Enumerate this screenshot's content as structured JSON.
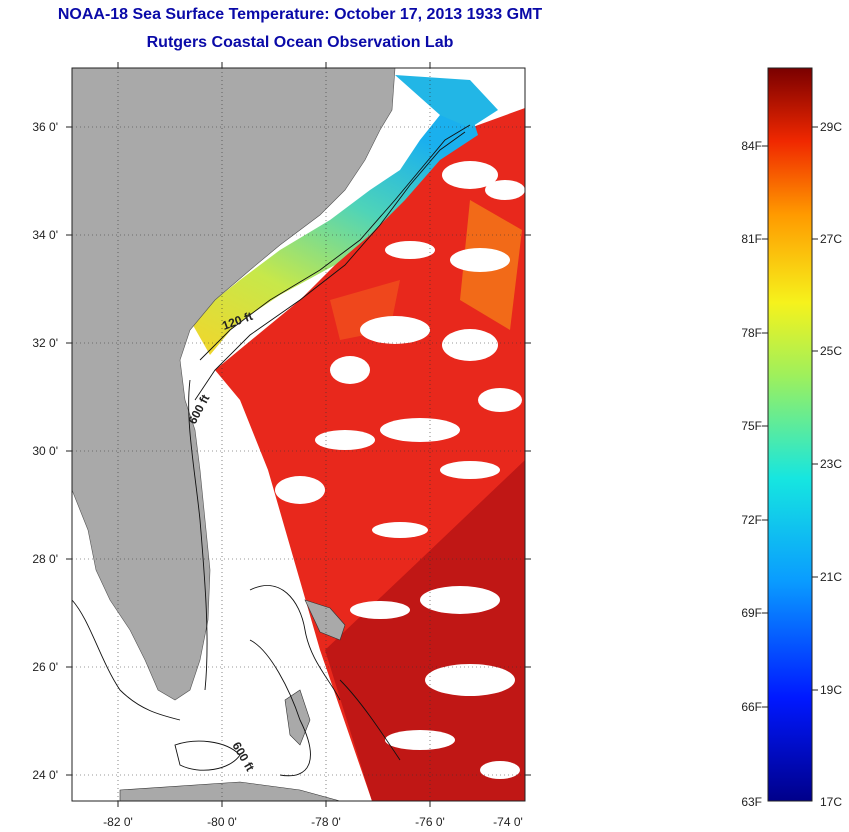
{
  "header": {
    "title": "NOAA-18 Sea Surface Temperature:  October 17, 2013 1933 GMT",
    "subtitle": "Rutgers Coastal Ocean Observation Lab"
  },
  "map": {
    "lon_ticks": [
      "-82 0'",
      "-80 0'",
      "-78 0'",
      "-76 0'",
      "-74 0'"
    ],
    "lat_ticks": [
      "36 0'",
      "34 0'",
      "32 0'",
      "30 0'",
      "28 0'",
      "26 0'",
      "24 0'"
    ],
    "contours": [
      "120 ft",
      "600 ft",
      "600 ft"
    ]
  },
  "colorbar": {
    "fahrenheit": [
      "84F",
      "81F",
      "78F",
      "75F",
      "72F",
      "69F",
      "66F",
      "63F"
    ],
    "celsius": [
      "29C",
      "27C",
      "25C",
      "23C",
      "21C",
      "19C",
      "17C"
    ]
  },
  "colors": {
    "title": "#0a0aa8",
    "land": "#a9a9a9",
    "sst_warm": "#e8281c",
    "sst_hot": "#b81414",
    "sst_cool": "#f5e62a",
    "sst_cold": "#22b6e6"
  }
}
